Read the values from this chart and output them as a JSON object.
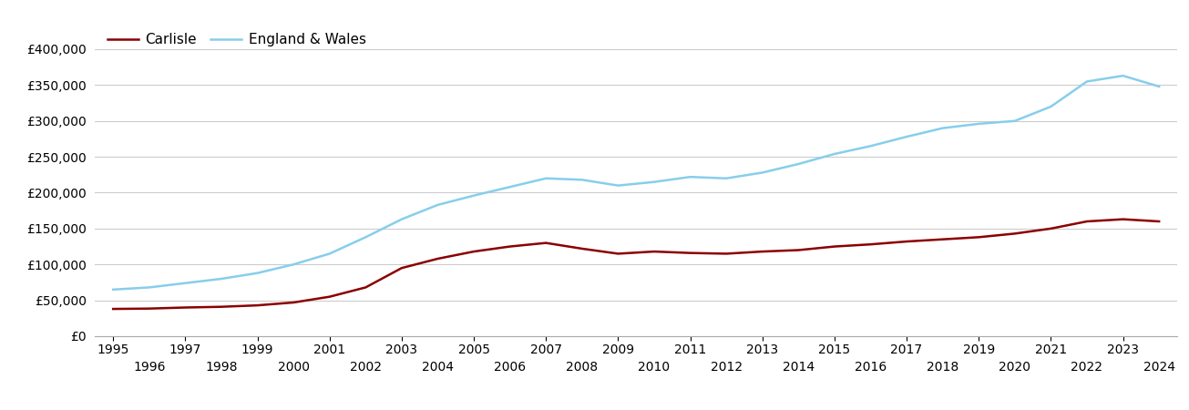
{
  "legend_labels": [
    "Carlisle",
    "England & Wales"
  ],
  "carlisle_color": "#8B0000",
  "ew_color": "#87CEEB",
  "background_color": "#ffffff",
  "grid_color": "#cccccc",
  "years": [
    1995,
    1996,
    1997,
    1998,
    1999,
    2000,
    2001,
    2002,
    2003,
    2004,
    2005,
    2006,
    2007,
    2008,
    2009,
    2010,
    2011,
    2012,
    2013,
    2014,
    2015,
    2016,
    2017,
    2018,
    2019,
    2020,
    2021,
    2022,
    2023,
    2024
  ],
  "carlisle": [
    38000,
    38500,
    40000,
    41000,
    43000,
    47000,
    55000,
    68000,
    95000,
    108000,
    118000,
    125000,
    130000,
    122000,
    115000,
    118000,
    116000,
    115000,
    118000,
    120000,
    125000,
    128000,
    132000,
    135000,
    138000,
    143000,
    150000,
    160000,
    163000,
    160000
  ],
  "england_wales": [
    65000,
    68000,
    74000,
    80000,
    88000,
    100000,
    115000,
    138000,
    163000,
    183000,
    196000,
    208000,
    220000,
    218000,
    210000,
    215000,
    222000,
    220000,
    228000,
    240000,
    254000,
    265000,
    278000,
    290000,
    296000,
    300000,
    320000,
    355000,
    363000,
    348000
  ],
  "ylim": [
    0,
    400000
  ],
  "yticks": [
    0,
    50000,
    100000,
    150000,
    200000,
    250000,
    300000,
    350000,
    400000
  ],
  "xticks_top": [
    1995,
    1997,
    1999,
    2001,
    2003,
    2005,
    2007,
    2009,
    2011,
    2013,
    2015,
    2017,
    2019,
    2021,
    2023
  ],
  "xticks_bottom": [
    1996,
    1998,
    2000,
    2002,
    2004,
    2006,
    2008,
    2010,
    2012,
    2014,
    2016,
    2018,
    2020,
    2022,
    2024
  ],
  "legend_fontsize": 11,
  "tick_fontsize": 10,
  "carlisle_lw": 1.8,
  "ew_lw": 1.8,
  "xlim": [
    1994.5,
    2024.5
  ]
}
